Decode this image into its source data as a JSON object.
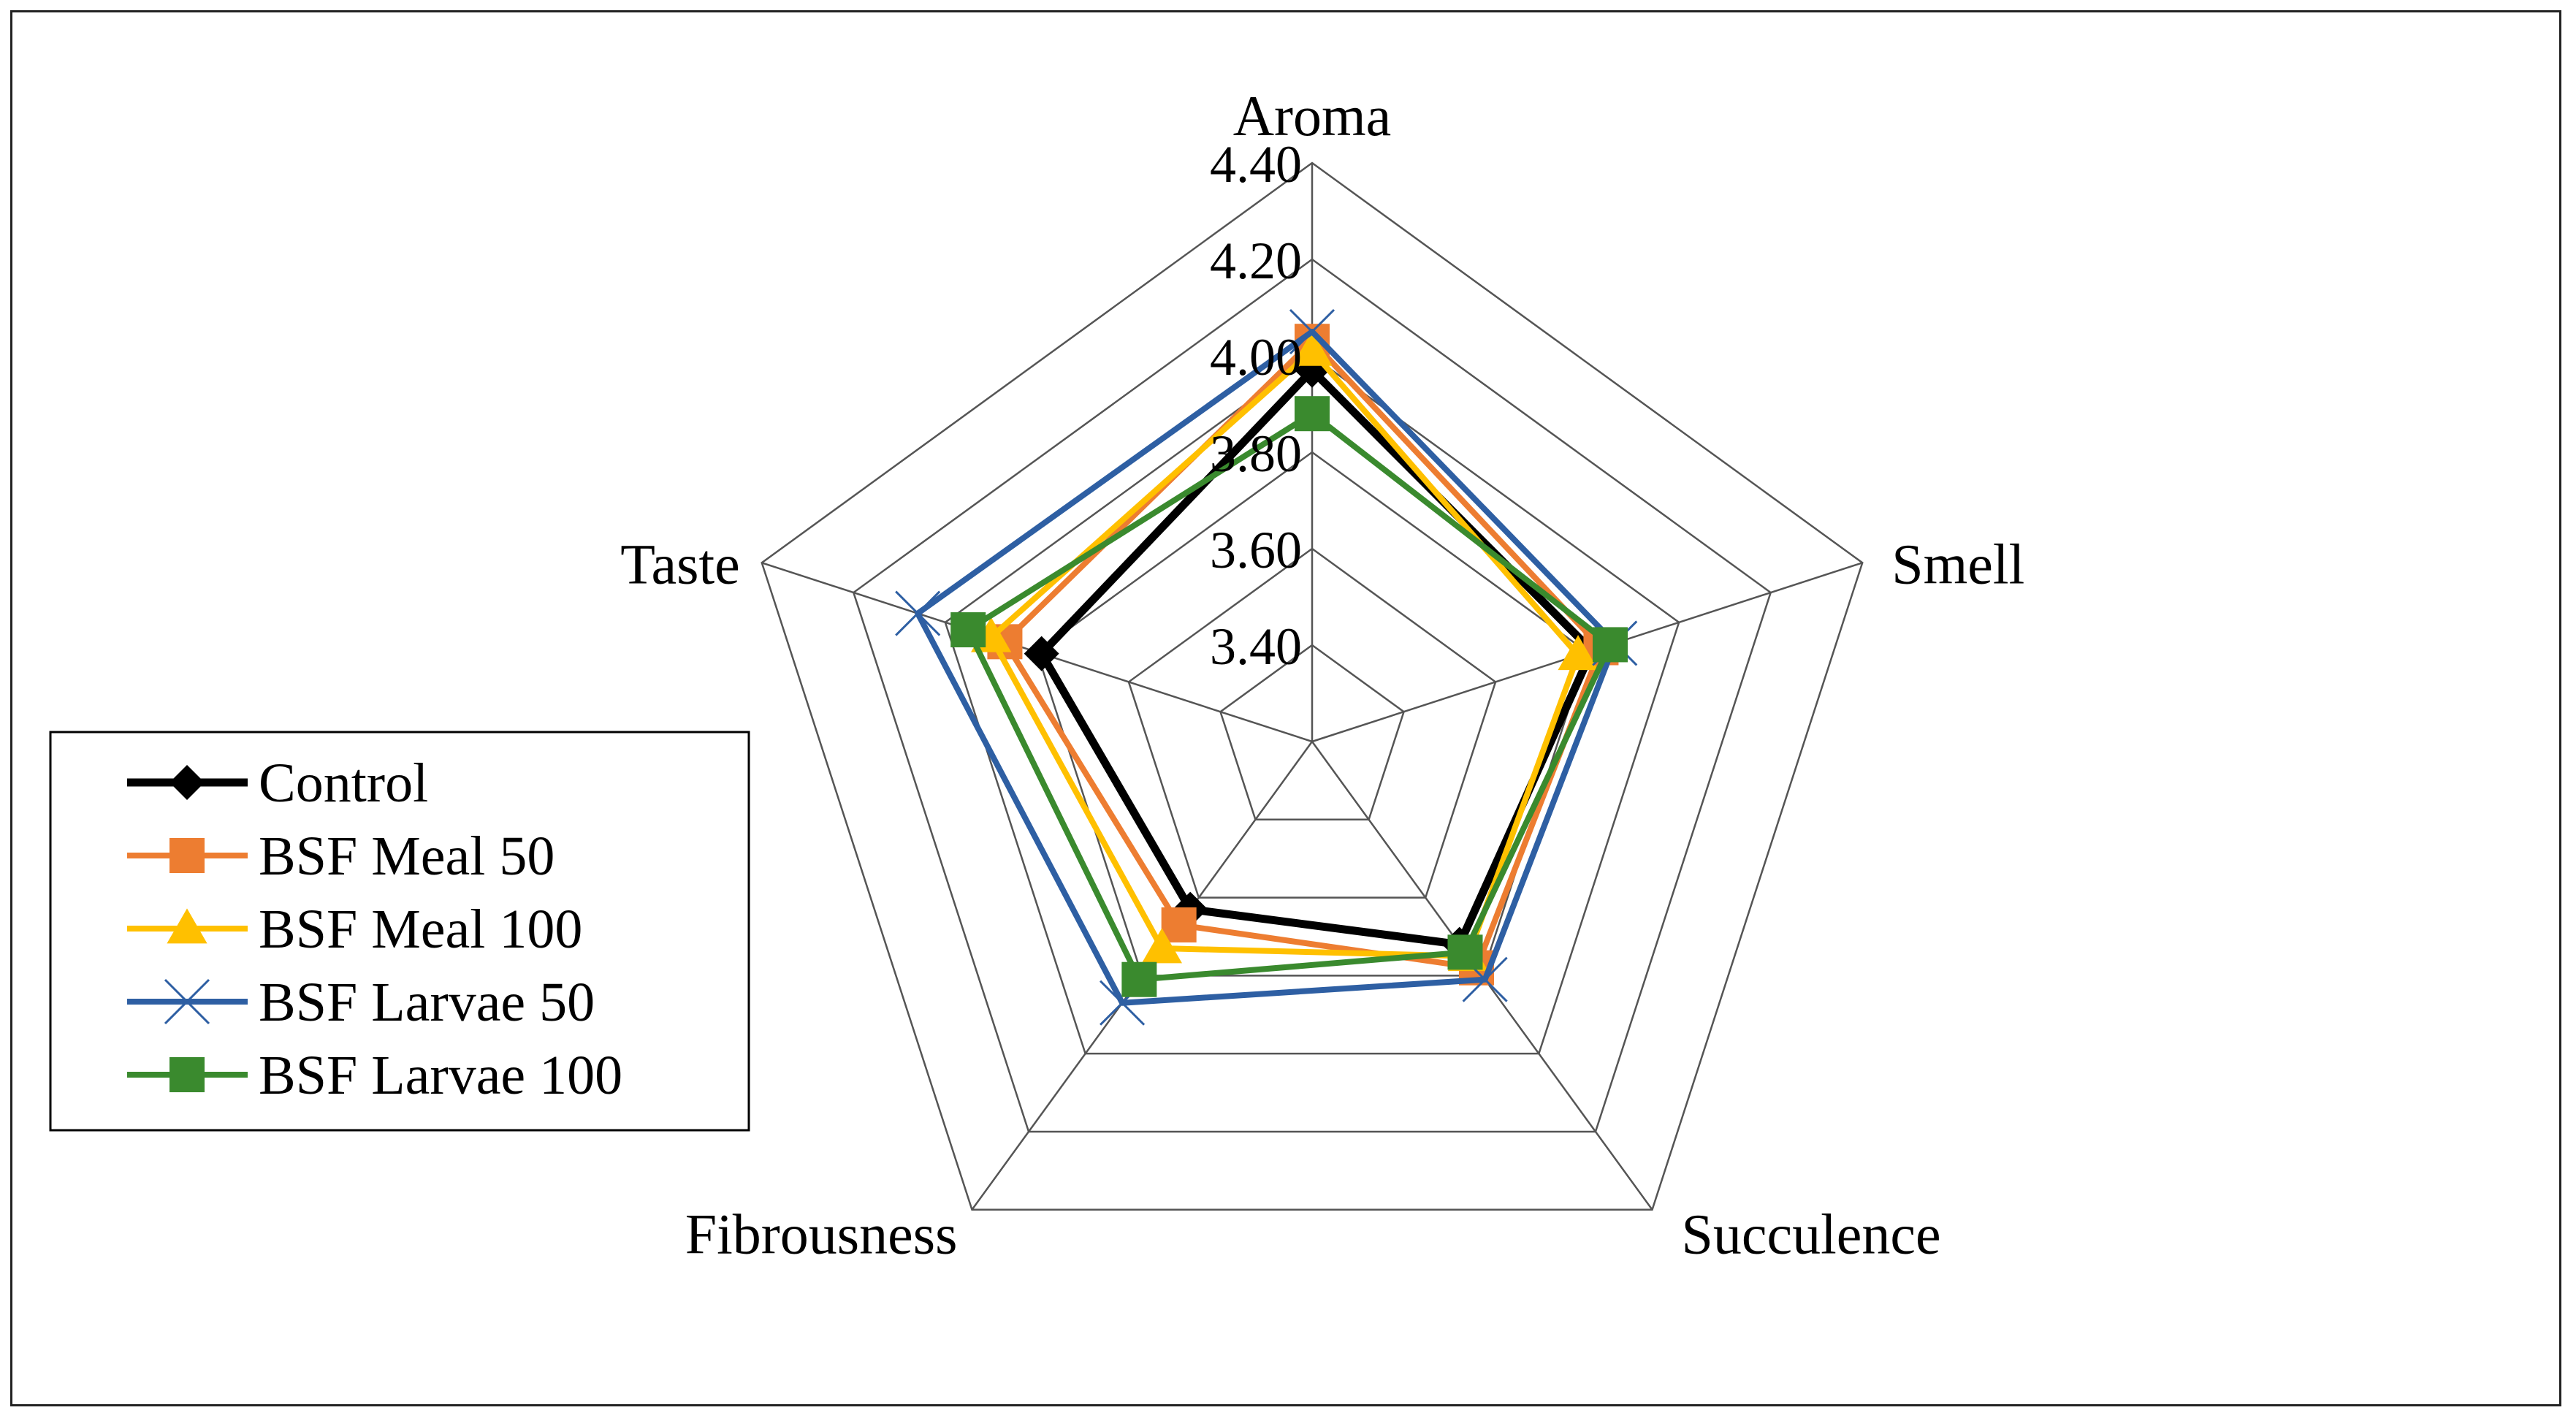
{
  "chart_data": {
    "type": "radar",
    "title": "",
    "axes": [
      "Aroma",
      "Smell",
      "Succulence",
      "Fibrousness",
      "Taste"
    ],
    "rlim": [
      3.2,
      4.4
    ],
    "ticks": [
      "4.40",
      "4.20",
      "4.00",
      "3.80",
      "3.60",
      "3.40"
    ],
    "tick_values": [
      4.4,
      4.2,
      4.0,
      3.8,
      3.6,
      3.4
    ],
    "grid": true,
    "legend_position": "left",
    "series": [
      {
        "name": "Control",
        "color": "#000000",
        "marker": "diamond",
        "values": [
          3.97,
          3.81,
          3.72,
          3.63,
          3.79
        ]
      },
      {
        "name": "BSF Meal 50",
        "color": "#ED7D31",
        "marker": "square",
        "values": [
          4.03,
          3.83,
          3.78,
          3.67,
          3.87
        ]
      },
      {
        "name": "BSF Meal 100",
        "color": "#FFC000",
        "marker": "triangle",
        "values": [
          4.01,
          3.78,
          3.75,
          3.73,
          3.9
        ]
      },
      {
        "name": "BSF Larvae 50",
        "color": "#2E5FA3",
        "marker": "x",
        "values": [
          4.05,
          3.86,
          3.81,
          3.87,
          4.06
        ]
      },
      {
        "name": "BSF Larvae 100",
        "color": "#3A8A2E",
        "marker": "square",
        "values": [
          3.88,
          3.85,
          3.74,
          3.81,
          3.95
        ]
      }
    ]
  }
}
